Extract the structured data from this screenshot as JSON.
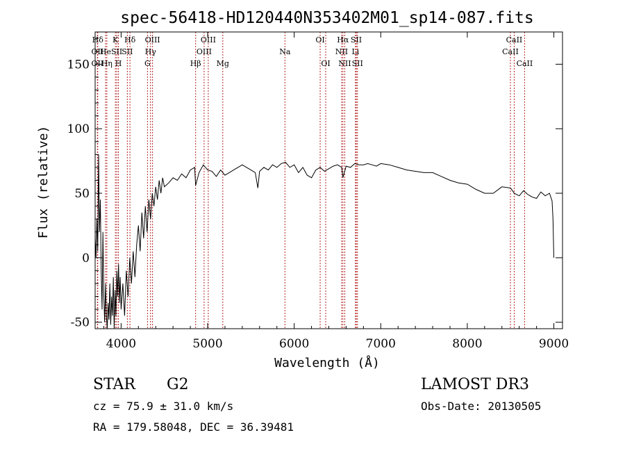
{
  "chart_data": {
    "type": "line",
    "title": "spec-56418-HD120440N353402M01_sp14-087.fits",
    "xlabel": "Wavelength (Å)",
    "ylabel": "Flux (relative)",
    "xlim": [
      3700,
      9100
    ],
    "ylim": [
      -55,
      175
    ],
    "x_ticks": [
      4000,
      5000,
      6000,
      7000,
      8000,
      9000
    ],
    "y_ticks": [
      -50,
      0,
      50,
      100,
      150
    ],
    "series": [
      {
        "name": "flux",
        "x": [
          3700,
          3710,
          3720,
          3730,
          3740,
          3750,
          3760,
          3770,
          3780,
          3790,
          3800,
          3810,
          3820,
          3830,
          3840,
          3850,
          3860,
          3870,
          3880,
          3890,
          3900,
          3910,
          3920,
          3930,
          3940,
          3950,
          3960,
          3970,
          3980,
          3990,
          4000,
          4020,
          4040,
          4060,
          4080,
          4100,
          4120,
          4140,
          4160,
          4180,
          4200,
          4220,
          4240,
          4260,
          4280,
          4300,
          4320,
          4340,
          4360,
          4380,
          4400,
          4420,
          4440,
          4460,
          4480,
          4500,
          4550,
          4600,
          4650,
          4700,
          4750,
          4800,
          4850,
          4861,
          4900,
          4950,
          5000,
          5050,
          5100,
          5150,
          5200,
          5250,
          5300,
          5350,
          5400,
          5450,
          5500,
          5550,
          5580,
          5600,
          5650,
          5700,
          5750,
          5800,
          5850,
          5900,
          5950,
          6000,
          6050,
          6100,
          6150,
          6200,
          6250,
          6300,
          6350,
          6400,
          6450,
          6500,
          6550,
          6563,
          6600,
          6650,
          6700,
          6750,
          6800,
          6850,
          6900,
          6950,
          7000,
          7100,
          7200,
          7300,
          7400,
          7500,
          7600,
          7700,
          7800,
          7900,
          8000,
          8100,
          8200,
          8300,
          8400,
          8500,
          8542,
          8600,
          8650,
          8700,
          8750,
          8800,
          8850,
          8900,
          8950,
          8980,
          8990,
          9000
        ],
        "values": [
          15,
          0,
          30,
          5,
          80,
          20,
          45,
          -10,
          -40,
          20,
          -30,
          -50,
          -20,
          -45,
          -55,
          -35,
          -48,
          -20,
          -52,
          -30,
          -45,
          -15,
          -55,
          -25,
          -45,
          -10,
          -30,
          -5,
          -35,
          -15,
          -40,
          -20,
          -45,
          -10,
          -30,
          0,
          -20,
          5,
          -15,
          10,
          25,
          5,
          35,
          15,
          40,
          20,
          45,
          30,
          50,
          40,
          55,
          45,
          60,
          50,
          62,
          55,
          58,
          62,
          60,
          65,
          62,
          68,
          70,
          56,
          66,
          72,
          68,
          67,
          63,
          68,
          64,
          66,
          68,
          70,
          72,
          70,
          68,
          66,
          54,
          67,
          70,
          68,
          72,
          70,
          73,
          74,
          70,
          72,
          66,
          70,
          64,
          62,
          68,
          70,
          67,
          69,
          71,
          72,
          70,
          62,
          71,
          70,
          73,
          72,
          72,
          73,
          72,
          71,
          73,
          72,
          70,
          68,
          67,
          66,
          66,
          63,
          60,
          58,
          57,
          53,
          50,
          50,
          55,
          54,
          50,
          48,
          52,
          49,
          47,
          46,
          51,
          48,
          50,
          44,
          30,
          0
        ]
      }
    ],
    "lines": [
      {
        "label": "Hδ",
        "wavelength": 3730,
        "row": 1
      },
      {
        "label": "OII",
        "wavelength": 3727,
        "row": 2
      },
      {
        "label": "OII",
        "wavelength": 3727,
        "row": 3
      },
      {
        "label": "He",
        "wavelength": 3820,
        "row": 2
      },
      {
        "label": "Hη",
        "wavelength": 3835,
        "row": 3
      },
      {
        "label": "K",
        "wavelength": 3934,
        "row": 1
      },
      {
        "label": "SII",
        "wavelength": 3950,
        "row": 2
      },
      {
        "label": "H",
        "wavelength": 3969,
        "row": 3
      },
      {
        "label": "Hδ",
        "wavelength": 4102,
        "row": 1
      },
      {
        "label": "SII",
        "wavelength": 4072,
        "row": 2
      },
      {
        "label": "OIII",
        "wavelength": 4363,
        "row": 1
      },
      {
        "label": "Hγ",
        "wavelength": 4340,
        "row": 2
      },
      {
        "label": "G",
        "wavelength": 4305,
        "row": 3
      },
      {
        "label": "Hβ",
        "wavelength": 4861,
        "row": 3
      },
      {
        "label": "OIII",
        "wavelength": 5007,
        "row": 1
      },
      {
        "label": "OIII",
        "wavelength": 4959,
        "row": 2
      },
      {
        "label": "Mg",
        "wavelength": 5175,
        "row": 3
      },
      {
        "label": "Na",
        "wavelength": 5893,
        "row": 2
      },
      {
        "label": "OI",
        "wavelength": 6300,
        "row": 1
      },
      {
        "label": "OI",
        "wavelength": 6364,
        "row": 3
      },
      {
        "label": "Hα",
        "wavelength": 6563,
        "row": 1
      },
      {
        "label": "NII",
        "wavelength": 6548,
        "row": 2
      },
      {
        "label": "NII",
        "wavelength": 6584,
        "row": 3
      },
      {
        "label": "SII",
        "wavelength": 6717,
        "row": 1
      },
      {
        "label": "Li",
        "wavelength": 6708,
        "row": 2
      },
      {
        "label": "SII",
        "wavelength": 6731,
        "row": 3
      },
      {
        "label": "CaII",
        "wavelength": 8542,
        "row": 1
      },
      {
        "label": "CaII",
        "wavelength": 8498,
        "row": 2
      },
      {
        "label": "CaII",
        "wavelength": 8662,
        "row": 3
      }
    ]
  },
  "info": {
    "object_class": "STAR",
    "subclass": "G2",
    "survey": "LAMOST DR3",
    "cz": "cz = 75.9 ± 31.0 km/s",
    "obs_date": "Obs-Date: 20130505",
    "coords": "RA = 179.58048, DEC =  36.39481"
  },
  "colors": {
    "line": "#000000",
    "marker": "#b22222",
    "axis": "#000000"
  }
}
